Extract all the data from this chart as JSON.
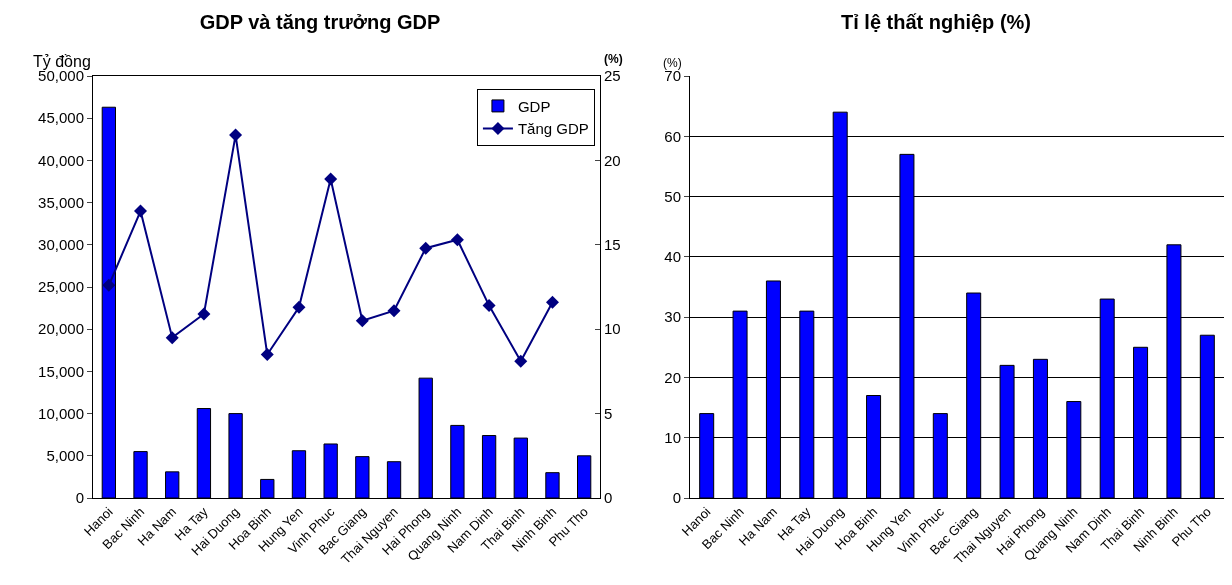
{
  "chart_data": [
    {
      "type": "bar",
      "title": "GDP và tăng trưởng GDP",
      "ylabel": "Tỷ đồng",
      "y2label": "(%)",
      "categories": [
        "Hanoi",
        "Bac Ninh",
        "Ha Nam",
        "Ha Tay",
        "Hai Duong",
        "Hoa Binh",
        "Hung Yen",
        "Vinh Phuc",
        "Bac Giang",
        "Thai Nguyen",
        "Hai Phong",
        "Quang Ninh",
        "Nam Dinh",
        "Thai Binh",
        "Ninh Binh",
        "Phu Tho"
      ],
      "series": [
        {
          "name": "GDP",
          "type": "bar",
          "color": "#0000ff",
          "values": [
            46300,
            5500,
            3100,
            10600,
            10000,
            2200,
            5600,
            6400,
            4900,
            4300,
            14200,
            8600,
            7400,
            7100,
            3000,
            5000
          ]
        },
        {
          "name": "Tăng GDP",
          "type": "line",
          "axis": "y2",
          "color": "#000080",
          "values": [
            12.6,
            17.0,
            9.5,
            10.9,
            21.5,
            8.5,
            11.3,
            18.9,
            10.5,
            11.1,
            14.8,
            15.3,
            11.4,
            8.1,
            11.6,
            null
          ]
        }
      ],
      "marker": "diamond",
      "ylim": [
        0,
        50000
      ],
      "yticks": [
        0,
        {
          "value": 5000,
          "label": "5,000"
        },
        {
          "value": 10000,
          "label": "10,000"
        },
        {
          "value": 15000,
          "label": "15,000"
        },
        {
          "value": 20000,
          "label": "20,000"
        },
        {
          "value": 25000,
          "label": "25,000"
        },
        {
          "value": 30000,
          "label": "30,000"
        },
        {
          "value": 35000,
          "label": "35,000"
        },
        {
          "value": 40000,
          "label": "40,000"
        },
        {
          "value": 45000,
          "label": "45,000"
        },
        {
          "value": 50000,
          "label": "50,000"
        }
      ],
      "y2lim": [
        0,
        25
      ],
      "y2ticks": [
        0,
        5,
        10,
        15,
        20,
        25
      ],
      "grid": false,
      "legend": "top right"
    },
    {
      "type": "bar",
      "title": "Tỉ lệ thất nghiệp (%)",
      "ylabel": "(%)",
      "categories": [
        "Hanoi",
        "Bac Ninh",
        "Ha Nam",
        "Ha Tay",
        "Hai Duong",
        "Hoa Binh",
        "Hung Yen",
        "Vinh Phuc",
        "Bac Giang",
        "Thai Nguyen",
        "Hai Phong",
        "Quang Ninh",
        "Nam Dinh",
        "Thai Binh",
        "Ninh Binh",
        "Phu Tho"
      ],
      "values": [
        14,
        31,
        36,
        31,
        64,
        17,
        57,
        14,
        34,
        22,
        23,
        16,
        33,
        25,
        42,
        27
      ],
      "color": "#0000ff",
      "ylim": [
        0,
        70
      ],
      "yticks": [
        0,
        10,
        20,
        30,
        40,
        50,
        60,
        70
      ],
      "grid": "y"
    }
  ]
}
